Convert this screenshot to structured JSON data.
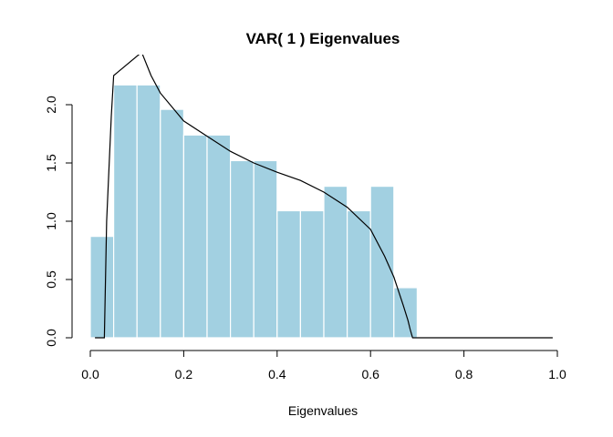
{
  "chart_data": {
    "type": "bar",
    "title": "VAR( 1 ) Eigenvalues",
    "xlabel": "Eigenvalues",
    "ylabel": "",
    "xlim": [
      0,
      1
    ],
    "ylim": [
      0,
      2.2
    ],
    "x_ticks": [
      0.0,
      0.2,
      0.4,
      0.6,
      0.8,
      1.0
    ],
    "x_tick_labels": [
      "0.0",
      "0.2",
      "0.4",
      "0.6",
      "0.8",
      "1.0"
    ],
    "y_ticks": [
      0.0,
      0.5,
      1.0,
      1.5,
      2.0
    ],
    "y_tick_labels": [
      "0.0",
      "0.5",
      "1.0",
      "1.5",
      "2.0"
    ],
    "grid": false,
    "legend": "none",
    "histogram": {
      "bin_edges": [
        0.0,
        0.05,
        0.1,
        0.15,
        0.2,
        0.25,
        0.3,
        0.35,
        0.4,
        0.45,
        0.5,
        0.55,
        0.6,
        0.65,
        0.7
      ],
      "densities": [
        0.87,
        2.17,
        2.17,
        1.96,
        1.74,
        1.74,
        1.52,
        1.52,
        1.09,
        1.09,
        1.3,
        1.09,
        1.3,
        0.43
      ],
      "fill": "#a2d0e1",
      "border": "#ffffff"
    },
    "density_curve": {
      "color": "#000000",
      "x": [
        0.01,
        0.03,
        0.035,
        0.045,
        0.05,
        0.11,
        0.13,
        0.15,
        0.2,
        0.25,
        0.3,
        0.35,
        0.4,
        0.45,
        0.5,
        0.55,
        0.6,
        0.63,
        0.65,
        0.66,
        0.67,
        0.68,
        0.685,
        0.69,
        0.7,
        0.8,
        0.9,
        0.99
      ],
      "y": [
        0.0,
        0.0,
        1.0,
        1.9,
        2.25,
        2.45,
        2.25,
        2.1,
        1.86,
        1.73,
        1.6,
        1.5,
        1.42,
        1.35,
        1.25,
        1.12,
        0.93,
        0.7,
        0.52,
        0.4,
        0.28,
        0.15,
        0.07,
        0.0,
        0.0,
        0.0,
        0.0,
        0.0
      ]
    }
  }
}
